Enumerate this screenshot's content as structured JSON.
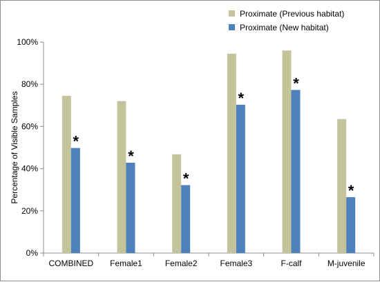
{
  "chart_data": {
    "type": "bar",
    "title": "",
    "xlabel": "",
    "ylabel": "Percentage of Visible Samples",
    "ylim": [
      0,
      100
    ],
    "yticks": [
      0,
      20,
      40,
      60,
      80,
      100
    ],
    "ytick_labels": [
      "0%",
      "20%",
      "40%",
      "60%",
      "80%",
      "100%"
    ],
    "grid": false,
    "legend_position": "top-right",
    "categories": [
      "COMBINED",
      "Female1",
      "Female2",
      "Female3",
      "F-calf",
      "M-juvenile"
    ],
    "series": [
      {
        "name": "Proximate (Previous habitat)",
        "color": "#c4c49c",
        "values": [
          74.5,
          72,
          46.8,
          94.5,
          96,
          63.5
        ]
      },
      {
        "name": "Proximate (New habitat)",
        "color": "#4f81bd",
        "values": [
          49.8,
          42.8,
          32.2,
          70.3,
          77.3,
          26.5
        ]
      }
    ],
    "annotations": [
      {
        "text": "*",
        "series": 1,
        "category": 0
      },
      {
        "text": "*",
        "series": 1,
        "category": 1
      },
      {
        "text": "*",
        "series": 1,
        "category": 2
      },
      {
        "text": "*",
        "series": 1,
        "category": 3
      },
      {
        "text": "*",
        "series": 1,
        "category": 4
      },
      {
        "text": "*",
        "series": 1,
        "category": 5
      }
    ]
  }
}
